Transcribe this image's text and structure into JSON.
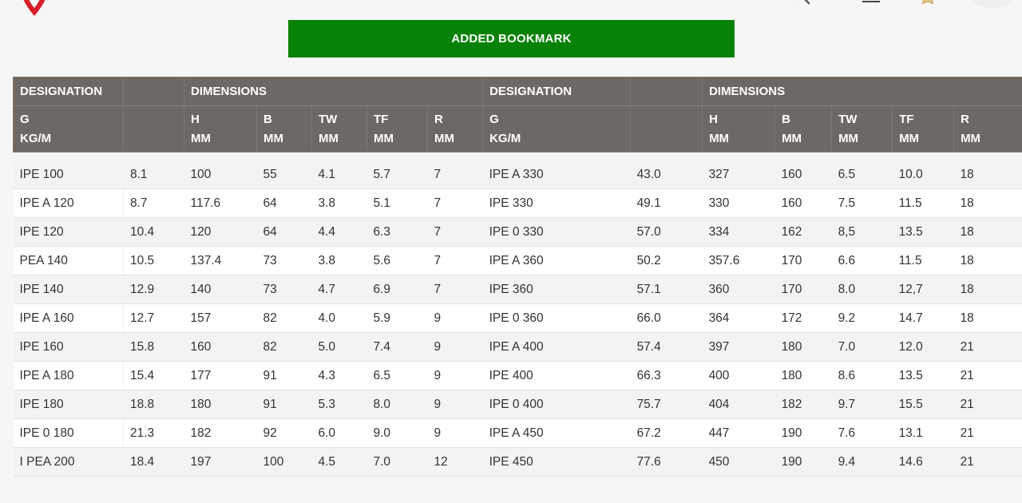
{
  "toast": {
    "text": "ADDED BOOKMARK"
  },
  "colors": {
    "toast_bg": "#078207",
    "header_bg": "#6e6865",
    "logo": "#d81e28"
  },
  "icons": {
    "logo": "brand-logo",
    "search": "search-icon",
    "menu": "menu-icon",
    "star": "star-icon"
  },
  "table": {
    "group_headers": [
      "DESIGNATION",
      "DIMENSIONS",
      "DESIGNATION",
      "DIMENSIONS"
    ],
    "columns": [
      {
        "l1": "G",
        "l2": "KG/M"
      },
      {
        "l1": "",
        "l2": ""
      },
      {
        "l1": "H",
        "l2": "MM"
      },
      {
        "l1": "B",
        "l2": "MM"
      },
      {
        "l1": "TW",
        "l2": "MM"
      },
      {
        "l1": "TF",
        "l2": "MM"
      },
      {
        "l1": "R",
        "l2": "MM"
      },
      {
        "l1": "G",
        "l2": "KG/M"
      },
      {
        "l1": "",
        "l2": ""
      },
      {
        "l1": "H",
        "l2": "MM"
      },
      {
        "l1": "B",
        "l2": "MM"
      },
      {
        "l1": "TW",
        "l2": "MM"
      },
      {
        "l1": "TF",
        "l2": "MM"
      },
      {
        "l1": "R",
        "l2": "MM"
      }
    ],
    "rows": [
      [
        "IPE 100",
        "8.1",
        "100",
        "55",
        "4.1",
        "5.7",
        "7",
        "IPE A 330",
        "43.0",
        "327",
        "160",
        "6.5",
        "10.0",
        "18"
      ],
      [
        "IPE A 120",
        "8.7",
        "117.6",
        "64",
        "3.8",
        "5.1",
        "7",
        "IPE 330",
        "49.1",
        "330",
        "160",
        "7.5",
        "11.5",
        "18"
      ],
      [
        "IPE 120",
        "10.4",
        "120",
        "64",
        "4.4",
        "6.3",
        "7",
        "IPE 0 330",
        "57.0",
        "334",
        "162",
        "8,5",
        "13.5",
        "18"
      ],
      [
        "PEA 140",
        "10.5",
        "137.4",
        "73",
        "3.8",
        "5.6",
        "7",
        "IPE A 360",
        "50.2",
        "357.6",
        "170",
        "6.6",
        "11.5",
        "18"
      ],
      [
        "IPE 140",
        "12.9",
        "140",
        "73",
        "4.7",
        "6.9",
        "7",
        "IPE 360",
        "57.1",
        "360",
        "170",
        "8.0",
        "12,7",
        "18"
      ],
      [
        "IPE A 160",
        "12.7",
        "157",
        "82",
        "4.0",
        "5.9",
        "9",
        "IPE 0 360",
        "66.0",
        "364",
        "172",
        "9.2",
        "14.7",
        "18"
      ],
      [
        "IPE 160",
        "15.8",
        "160",
        "82",
        "5.0",
        "7.4",
        "9",
        "IPE A 400",
        "57.4",
        "397",
        "180",
        "7.0",
        "12.0",
        "21"
      ],
      [
        "IPE A 180",
        "15.4",
        "177",
        "91",
        "4.3",
        "6.5",
        "9",
        "IPE 400",
        "66.3",
        "400",
        "180",
        "8.6",
        "13.5",
        "21"
      ],
      [
        "IPE 180",
        "18.8",
        "180",
        "91",
        "5.3",
        "8.0",
        "9",
        "IPE 0 400",
        "75.7",
        "404",
        "182",
        "9.7",
        "15.5",
        "21"
      ],
      [
        "IPE 0 180",
        "21.3",
        "182",
        "92",
        "6.0",
        "9.0",
        "9",
        "IPE A 450",
        "67.2",
        "447",
        "190",
        "7.6",
        "13.1",
        "21"
      ],
      [
        "I PEA 200",
        "18.4",
        "197",
        "100",
        "4.5",
        "7.0",
        "12",
        "IPE 450",
        "77.6",
        "450",
        "190",
        "9.4",
        "14.6",
        "21"
      ]
    ]
  }
}
